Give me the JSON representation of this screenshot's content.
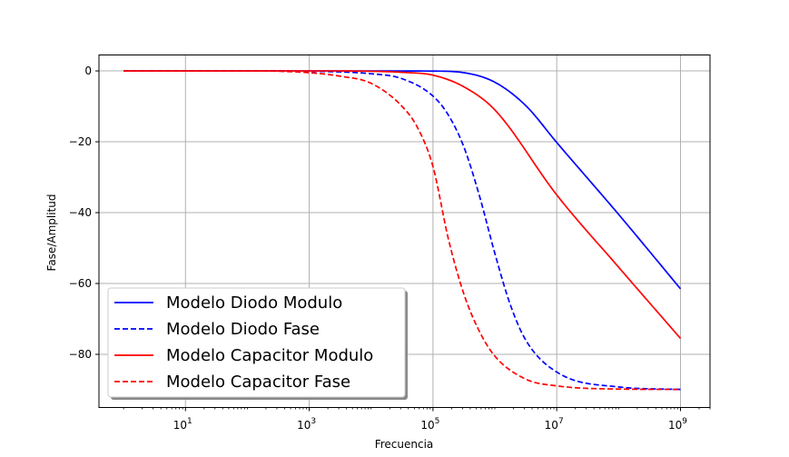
{
  "chart_data": {
    "type": "line",
    "xscale": "log",
    "xlabel": "Frecuencia",
    "ylabel": "Fase/Amplitud",
    "xlim": [
      0.4,
      3000000000
    ],
    "ylim": [
      -95,
      4.5
    ],
    "grid": true,
    "legend_position": "lower-left",
    "x_ticks": [
      {
        "value": 10,
        "label": "10",
        "exp": "1"
      },
      {
        "value": 1000,
        "label": "10",
        "exp": "3"
      },
      {
        "value": 100000,
        "label": "10",
        "exp": "5"
      },
      {
        "value": 10000000,
        "label": "10",
        "exp": "7"
      },
      {
        "value": 1000000000,
        "label": "10",
        "exp": "9"
      }
    ],
    "y_ticks": [
      {
        "value": 0,
        "label": "0"
      },
      {
        "value": -20,
        "label": "−20"
      },
      {
        "value": -40,
        "label": "−40"
      },
      {
        "value": -60,
        "label": "−60"
      },
      {
        "value": -80,
        "label": "−80"
      }
    ],
    "series": [
      {
        "name": "Modelo Diodo Modulo",
        "color": "#0000ff",
        "dash": "solid",
        "x": [
          1,
          10,
          100,
          1000,
          10000,
          100000,
          316228,
          1000000,
          3162278,
          10000000,
          100000000,
          1000000000
        ],
        "y": [
          0,
          0,
          0,
          0,
          0,
          -0.05,
          -0.5,
          -3.2,
          -9.8,
          -20.2,
          -40.5,
          -61.5
        ]
      },
      {
        "name": "Modelo Diodo Fase",
        "color": "#0000ff",
        "dash": "dashed",
        "x": [
          1,
          10,
          100,
          1000,
          10000,
          31623,
          100000,
          177828,
          316228,
          562341,
          1000000,
          1778279,
          3162278,
          10000000,
          100000000,
          1000000000
        ],
        "y": [
          0,
          0,
          0,
          -0.1,
          -0.8,
          -2.2,
          -7.1,
          -12.5,
          -21.5,
          -35.2,
          -51.5,
          -66.0,
          -76.0,
          -85.0,
          -89.2,
          -89.9
        ]
      },
      {
        "name": "Modelo Capacitor Modulo",
        "color": "#ff0000",
        "dash": "solid",
        "x": [
          1,
          10,
          100,
          1000,
          10000,
          31623,
          100000,
          316228,
          1000000,
          10000000,
          100000000,
          1000000000
        ],
        "y": [
          0,
          0,
          0,
          0,
          -0.1,
          -0.4,
          -1.2,
          -4.5,
          -11.0,
          -35.0,
          -55.4,
          -75.5
        ]
      },
      {
        "name": "Modelo Capacitor Fase",
        "color": "#ff0000",
        "dash": "dashed",
        "x": [
          1,
          10,
          100,
          1000,
          3162,
          10000,
          31623,
          56234,
          100000,
          177828,
          316228,
          562341,
          1000000,
          3162278,
          10000000,
          100000000,
          1000000000
        ],
        "y": [
          0,
          0,
          0,
          -0.5,
          -1.5,
          -3.5,
          -10.0,
          -16.0,
          -27.0,
          -47.5,
          -63.0,
          -73.5,
          -80.5,
          -87.0,
          -88.9,
          -89.8,
          -89.9
        ]
      }
    ]
  }
}
